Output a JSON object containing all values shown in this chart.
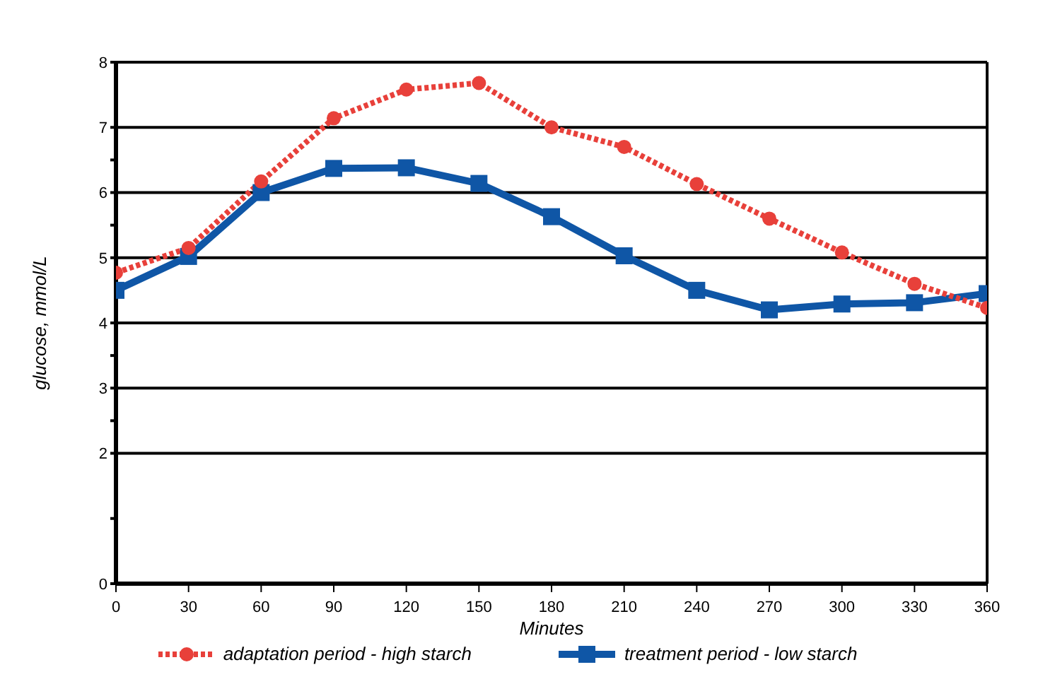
{
  "chart_data": {
    "type": "line",
    "xlabel": "Minutes",
    "ylabel": "glucose, mmol/L",
    "x": [
      0,
      30,
      60,
      90,
      120,
      150,
      180,
      210,
      240,
      270,
      300,
      330,
      360
    ],
    "series": [
      {
        "name": "adaptation period - high starch",
        "color": "#e8403a",
        "marker": "circle",
        "line_style": "dotted",
        "values": [
          4.77,
          5.15,
          6.17,
          7.14,
          7.58,
          7.68,
          7.0,
          6.7,
          6.13,
          5.6,
          5.08,
          4.6,
          4.23
        ]
      },
      {
        "name": "treatment period - low starch",
        "color": "#0f56a6",
        "marker": "square",
        "line_style": "solid",
        "values": [
          4.5,
          5.02,
          6.0,
          6.37,
          6.38,
          6.14,
          5.63,
          5.03,
          4.5,
          4.2,
          4.29,
          4.31,
          4.45
        ]
      }
    ],
    "xlim": [
      0,
      360
    ],
    "xticks": [
      0,
      30,
      60,
      90,
      120,
      150,
      180,
      210,
      240,
      270,
      300,
      330,
      360
    ],
    "ylim": [
      0,
      8
    ],
    "yticks": [
      0,
      {
        "value": 1,
        "label": null
      },
      2,
      {
        "value": 2.5,
        "label": null
      },
      3,
      {
        "value": 3.5,
        "label": null
      },
      4,
      5,
      {
        "value": 5.5,
        "label": null
      },
      6,
      {
        "value": 6.5,
        "label": null
      },
      7,
      8
    ],
    "grid": "y",
    "legend": "bottom"
  }
}
